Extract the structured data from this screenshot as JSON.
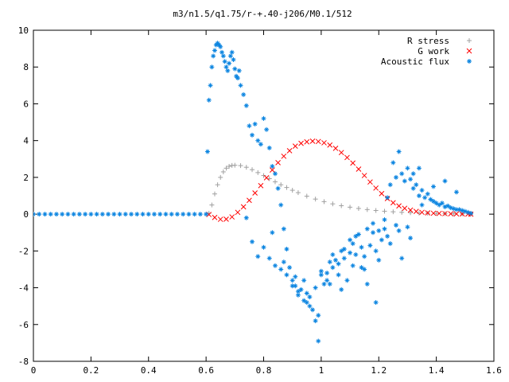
{
  "chart_data": {
    "type": "scatter",
    "title": "m3/n1.5/q1.75/r-+.40-j206/M0.1/512",
    "xlabel": "",
    "ylabel": "",
    "xlim": [
      0,
      1.6
    ],
    "ylim": [
      -8,
      10
    ],
    "x_ticks": [
      "0",
      "0.2",
      "0.4",
      "0.6",
      "0.8",
      "1",
      "1.2",
      "1.4",
      "1.6"
    ],
    "y_ticks": [
      "-8",
      "-6",
      "-4",
      "-2",
      "0",
      "2",
      "4",
      "6",
      "8",
      "10"
    ],
    "grid": false,
    "legend_position": "top-right",
    "series": [
      {
        "name": "R stress",
        "marker": "+",
        "color": "#a0a0a0",
        "x": [
          0.61,
          0.62,
          0.63,
          0.64,
          0.65,
          0.66,
          0.67,
          0.68,
          0.69,
          0.7,
          0.72,
          0.74,
          0.76,
          0.78,
          0.8,
          0.82,
          0.84,
          0.86,
          0.88,
          0.9,
          0.92,
          0.95,
          0.98,
          1.01,
          1.04,
          1.07,
          1.1,
          1.13,
          1.16,
          1.19,
          1.22,
          1.25,
          1.28,
          1.31,
          1.34,
          1.37,
          1.4,
          1.43,
          1.46,
          1.49,
          1.52
        ],
        "y": [
          0.05,
          0.5,
          1.1,
          1.6,
          2.0,
          2.3,
          2.5,
          2.6,
          2.65,
          2.66,
          2.64,
          2.55,
          2.42,
          2.26,
          2.1,
          1.93,
          1.76,
          1.6,
          1.45,
          1.3,
          1.17,
          0.98,
          0.82,
          0.68,
          0.56,
          0.46,
          0.38,
          0.31,
          0.25,
          0.2,
          0.16,
          0.13,
          0.1,
          0.08,
          0.06,
          0.05,
          0.04,
          0.03,
          0.02,
          0.015,
          0.01
        ]
      },
      {
        "name": "G work",
        "marker": "x",
        "color": "#ff0000",
        "x": [
          0.61,
          0.63,
          0.65,
          0.67,
          0.69,
          0.71,
          0.73,
          0.75,
          0.77,
          0.79,
          0.81,
          0.83,
          0.85,
          0.87,
          0.89,
          0.91,
          0.93,
          0.95,
          0.97,
          0.99,
          1.01,
          1.03,
          1.05,
          1.07,
          1.09,
          1.11,
          1.13,
          1.15,
          1.17,
          1.19,
          1.21,
          1.23,
          1.25,
          1.27,
          1.29,
          1.31,
          1.33,
          1.35,
          1.37,
          1.39,
          1.41,
          1.43,
          1.45,
          1.47,
          1.49,
          1.51,
          1.52
        ],
        "y": [
          -0.02,
          -0.18,
          -0.28,
          -0.27,
          -0.15,
          0.1,
          0.4,
          0.75,
          1.15,
          1.55,
          1.98,
          2.4,
          2.8,
          3.15,
          3.45,
          3.7,
          3.85,
          3.93,
          3.97,
          3.95,
          3.88,
          3.76,
          3.58,
          3.35,
          3.08,
          2.78,
          2.45,
          2.1,
          1.75,
          1.42,
          1.12,
          0.85,
          0.62,
          0.45,
          0.32,
          0.22,
          0.15,
          0.1,
          0.07,
          0.05,
          0.04,
          0.03,
          0.02,
          0.015,
          0.01,
          0.005,
          0.0
        ]
      },
      {
        "name": "Acoustic flux",
        "marker": "*",
        "color": "#0a84e0",
        "x": [
          0.0,
          0.02,
          0.04,
          0.06,
          0.08,
          0.1,
          0.12,
          0.14,
          0.16,
          0.18,
          0.2,
          0.22,
          0.24,
          0.26,
          0.28,
          0.3,
          0.32,
          0.34,
          0.36,
          0.38,
          0.4,
          0.42,
          0.44,
          0.46,
          0.48,
          0.5,
          0.52,
          0.54,
          0.56,
          0.58,
          0.6,
          0.605,
          0.61,
          0.615,
          0.62,
          0.625,
          0.63,
          0.635,
          0.64,
          0.645,
          0.65,
          0.655,
          0.66,
          0.665,
          0.67,
          0.675,
          0.68,
          0.685,
          0.69,
          0.695,
          0.7,
          0.705,
          0.71,
          0.715,
          0.72,
          0.73,
          0.74,
          0.75,
          0.76,
          0.77,
          0.78,
          0.79,
          0.8,
          0.81,
          0.82,
          0.83,
          0.84,
          0.85,
          0.86,
          0.87,
          0.88,
          0.89,
          0.9,
          0.91,
          0.92,
          0.93,
          0.94,
          0.95,
          0.96,
          0.97,
          0.98,
          0.99,
          1.0,
          1.01,
          1.02,
          1.03,
          1.04,
          1.05,
          1.06,
          1.07,
          1.08,
          1.09,
          1.1,
          1.11,
          1.12,
          1.13,
          1.14,
          1.15,
          1.16,
          1.17,
          1.18,
          1.19,
          1.2,
          1.21,
          1.22,
          1.23,
          1.24,
          1.25,
          1.26,
          1.27,
          1.28,
          1.29,
          1.3,
          1.31,
          1.32,
          1.33,
          1.34,
          1.35,
          1.36,
          1.37,
          1.38,
          1.39,
          1.4,
          1.41,
          1.42,
          1.43,
          1.44,
          1.45,
          1.46,
          1.47,
          1.48,
          1.49,
          1.5,
          1.51,
          1.52,
          0.74,
          0.76,
          0.78,
          0.8,
          0.82,
          0.84,
          0.86,
          0.88,
          0.9,
          0.92,
          0.94,
          0.96,
          0.98,
          1.0,
          1.02,
          1.04,
          1.06,
          1.08,
          1.1,
          1.12,
          1.14,
          1.16,
          1.18,
          1.2,
          1.22,
          1.24,
          1.26,
          1.28,
          1.3,
          1.32,
          1.34,
          0.83,
          0.87,
          0.91,
          0.95,
          0.99,
          1.03,
          1.07,
          1.11,
          1.15,
          1.19,
          1.23,
          1.27,
          1.31,
          1.35,
          1.39,
          1.43,
          1.47
        ],
        "y": [
          0,
          0,
          0,
          0,
          0,
          0,
          0,
          0,
          0,
          0,
          0,
          0,
          0,
          0,
          0,
          0,
          0,
          0,
          0,
          0,
          0,
          0,
          0,
          0,
          0,
          0,
          0,
          0,
          0,
          0,
          0,
          3.4,
          6.2,
          7.0,
          8.0,
          8.6,
          8.9,
          9.2,
          9.3,
          9.2,
          9.1,
          8.8,
          8.6,
          8.3,
          8.0,
          7.8,
          8.2,
          8.6,
          8.8,
          8.4,
          7.9,
          7.5,
          7.4,
          7.8,
          7.0,
          6.5,
          5.9,
          4.8,
          4.3,
          4.9,
          4.0,
          3.8,
          5.2,
          4.6,
          3.6,
          2.6,
          2.2,
          1.4,
          0.5,
          -0.8,
          -1.9,
          -2.9,
          -3.6,
          -3.9,
          -4.2,
          -4.1,
          -4.7,
          -4.3,
          -5.0,
          -5.2,
          -5.8,
          -6.9,
          -3.3,
          -3.8,
          -3.2,
          -2.6,
          -2.9,
          -2.5,
          -3.3,
          -2.0,
          -2.4,
          -3.6,
          -1.4,
          -1.6,
          -2.2,
          -1.1,
          -2.9,
          -2.3,
          -3.8,
          -1.7,
          -1.0,
          -4.8,
          -2.5,
          -1.4,
          -0.8,
          0.9,
          1.6,
          2.8,
          2.0,
          3.4,
          2.2,
          1.8,
          2.5,
          1.9,
          1.4,
          1.6,
          1.0,
          1.3,
          0.9,
          1.1,
          0.8,
          0.7,
          0.6,
          0.5,
          0.6,
          0.4,
          0.45,
          0.35,
          0.3,
          0.25,
          0.25,
          0.2,
          0.15,
          0.1,
          0.05,
          -0.2,
          -1.5,
          -2.3,
          -1.8,
          -2.4,
          -2.8,
          -3.0,
          -3.3,
          -3.9,
          -4.4,
          -3.6,
          -4.5,
          -4.0,
          -3.1,
          -3.6,
          -2.2,
          -2.7,
          -1.9,
          -2.1,
          -1.2,
          -1.8,
          -0.8,
          -0.5,
          -0.9,
          -0.3,
          -1.6,
          -0.6,
          -2.4,
          -0.7,
          2.2,
          2.5,
          -1.0,
          -2.6,
          -3.4,
          -4.8,
          -5.5,
          -3.8,
          -4.1,
          -2.8,
          -3.0,
          -2.0,
          -1.2,
          -0.9,
          -1.3,
          0.5,
          1.5,
          1.8,
          1.2
        ]
      }
    ]
  }
}
